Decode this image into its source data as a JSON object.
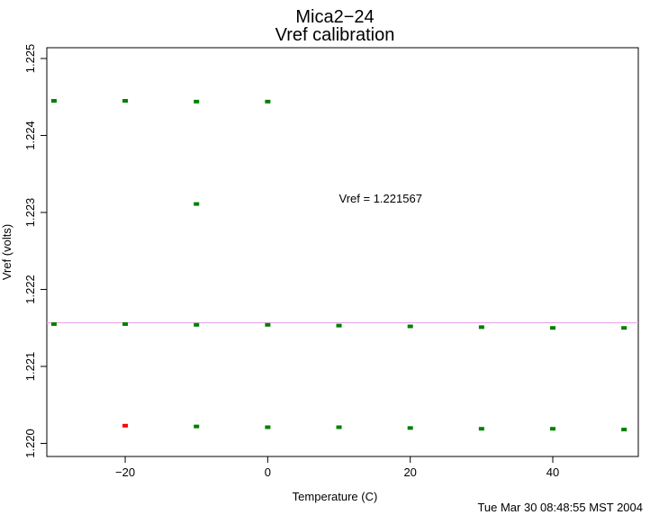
{
  "chart_data": {
    "type": "scatter",
    "title": "Mica2−24",
    "subtitle": "Vref calibration",
    "xlabel": "Temperature (C)",
    "ylabel": "Vref (volts)",
    "xlim": [
      -31,
      52
    ],
    "ylim": [
      1.21983,
      1.22514
    ],
    "x_ticks": [
      -20,
      0,
      20,
      40
    ],
    "x_tick_labels": [
      "−20",
      "0",
      "20",
      "40"
    ],
    "y_ticks": [
      1.22,
      1.221,
      1.222,
      1.223,
      1.224,
      1.225
    ],
    "y_tick_labels": [
      "1.220",
      "1.221",
      "1.222",
      "1.223",
      "1.224",
      "1.225"
    ],
    "grid": false,
    "annotation": {
      "text": "Vref = 1.221567",
      "x": 10,
      "y": 1.22313
    },
    "reference_line": {
      "y": 1.221567,
      "color": "#e8a0e8"
    },
    "timestamp": "Tue Mar 30 08:48:55 MST 2004",
    "series": [
      {
        "color": "#008000",
        "points": [
          {
            "x": -30,
            "y": 1.22445
          },
          {
            "x": -20,
            "y": 1.22445
          },
          {
            "x": -10,
            "y": 1.22444
          },
          {
            "x": 0,
            "y": 1.22444
          },
          {
            "x": -10,
            "y": 1.22311
          },
          {
            "x": -30,
            "y": 1.22155
          },
          {
            "x": -20,
            "y": 1.22155
          },
          {
            "x": -10,
            "y": 1.22154
          },
          {
            "x": 0,
            "y": 1.22154
          },
          {
            "x": 10,
            "y": 1.22153
          },
          {
            "x": 20,
            "y": 1.22152
          },
          {
            "x": 30,
            "y": 1.22151
          },
          {
            "x": 40,
            "y": 1.2215
          },
          {
            "x": 50,
            "y": 1.2215
          },
          {
            "x": -10,
            "y": 1.22022
          },
          {
            "x": 0,
            "y": 1.22021
          },
          {
            "x": 10,
            "y": 1.22021
          },
          {
            "x": 20,
            "y": 1.2202
          },
          {
            "x": 30,
            "y": 1.22019
          },
          {
            "x": 40,
            "y": 1.22019
          },
          {
            "x": 50,
            "y": 1.22018
          }
        ]
      },
      {
        "color": "#ff0000",
        "points": [
          {
            "x": -20,
            "y": 1.22023
          }
        ]
      }
    ]
  }
}
